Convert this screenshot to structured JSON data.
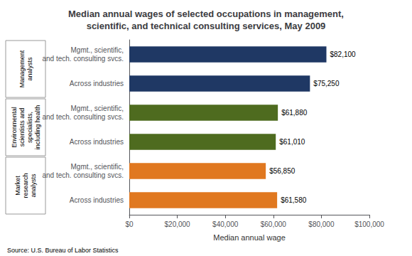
{
  "chart_data": {
    "type": "bar",
    "orientation": "horizontal",
    "title": "Median annual wages of selected occupations in management,\nscientific, and technical consulting services, May 2009",
    "categories": [
      "Mgmt., scientific,\nand tech. consulting svcs.",
      "Across industries",
      "Mgmt., scientific,\nand tech. consulting svcs.",
      "Across industries",
      "Mgmt., scientific,\nand tech. consulting svcs.",
      "Across industries"
    ],
    "groups": [
      "Management\nanalysts",
      "Management\nanalysts",
      "Environmental\nscientists and\nspecialists,\nincluding health",
      "Environmental\nscientists and\nspecialists,\nincluding health",
      "Market\nresearch\nanalysts",
      "Market\nresearch\nanalysts"
    ],
    "values": [
      82100,
      75250,
      61880,
      61010,
      56850,
      61580
    ],
    "value_labels": [
      "$82,100",
      "$75,250",
      "$61,880",
      "$61,010",
      "$56,850",
      "$61,580"
    ],
    "data_labels": true,
    "colors": [
      "#1F3864",
      "#1F3864",
      "#4E6B1F",
      "#4E6B1F",
      "#E07820",
      "#E07820"
    ],
    "xlabel": "Median annual wage",
    "xlim": [
      0,
      100000
    ],
    "xticks": [
      {
        "value": 0,
        "label": "$0"
      },
      {
        "value": 20000,
        "label": "$20,000"
      },
      {
        "value": 40000,
        "label": "$40,000"
      },
      {
        "value": 60000,
        "label": "$60,000"
      },
      {
        "value": 80000,
        "label": "$80,000"
      },
      {
        "value": 100000,
        "label": "$100,000"
      }
    ],
    "grid": false,
    "annotations": [
      "Source: U.S. Bureau of Labor Statistics"
    ]
  }
}
